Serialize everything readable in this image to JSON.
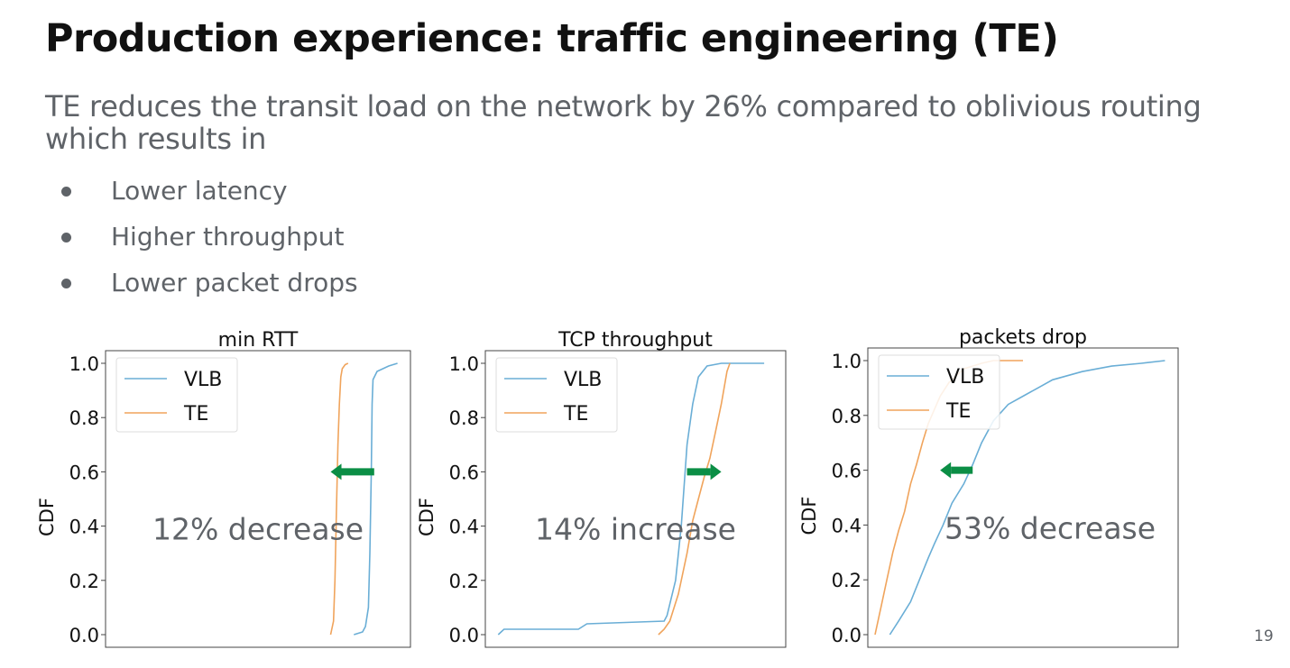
{
  "slide": {
    "title": "Production experience: traffic engineering (TE)",
    "subtitle": "TE reduces the transit load on the network by 26% compared to oblivious routing which results in",
    "bullets": [
      "Lower latency",
      "Higher throughput",
      "Lower packet drops"
    ],
    "page_number": "19"
  },
  "colors": {
    "vlb": "#6aaed6",
    "te": "#f0a45c",
    "arrow": "#0b8e45",
    "text": "#5f6368"
  },
  "chart_data": [
    {
      "type": "line",
      "title": "min RTT",
      "ylabel": "CDF",
      "xlabel": "",
      "ylim": [
        0,
        1
      ],
      "xlim": [
        0,
        100
      ],
      "yticks": [
        "0.0",
        "0.2",
        "0.4",
        "0.6",
        "0.8",
        "1.0"
      ],
      "legend": "top-left",
      "annotation": "12% decrease",
      "arrow": {
        "direction": "left",
        "x_from": 90,
        "x_to": 75,
        "y": 0.6
      },
      "series": [
        {
          "name": "VLB",
          "x": [
            83,
            86,
            87,
            88,
            88.5,
            89,
            89.3,
            89.6,
            91,
            95,
            98
          ],
          "y": [
            0.0,
            0.01,
            0.03,
            0.1,
            0.3,
            0.6,
            0.85,
            0.94,
            0.97,
            0.99,
            1.0
          ]
        },
        {
          "name": "TE",
          "x": [
            75,
            76,
            76.5,
            77,
            77.5,
            78,
            78.5,
            79,
            80,
            81
          ],
          "y": [
            0.0,
            0.05,
            0.2,
            0.45,
            0.7,
            0.85,
            0.95,
            0.98,
            0.995,
            1.0
          ]
        }
      ]
    },
    {
      "type": "line",
      "title": "TCP throughput",
      "ylabel": "CDF",
      "xlabel": "",
      "ylim": [
        0,
        1
      ],
      "xlim": [
        0,
        100
      ],
      "yticks": [
        "0.0",
        "0.2",
        "0.4",
        "0.6",
        "0.8",
        "1.0"
      ],
      "legend": "top-left",
      "annotation": "14% increase",
      "arrow": {
        "direction": "right",
        "x_from": 68,
        "x_to": 80,
        "y": 0.6
      },
      "series": [
        {
          "name": "VLB",
          "x": [
            2,
            4,
            30,
            33,
            60,
            61,
            64,
            66,
            67,
            68,
            70,
            72,
            75,
            80,
            95
          ],
          "y": [
            0.0,
            0.02,
            0.02,
            0.04,
            0.05,
            0.07,
            0.2,
            0.4,
            0.55,
            0.7,
            0.85,
            0.95,
            0.99,
            1.0,
            1.0
          ]
        },
        {
          "name": "TE",
          "x": [
            58,
            60,
            62,
            65,
            68,
            70,
            72,
            74,
            76,
            78,
            80,
            82,
            83
          ],
          "y": [
            0.0,
            0.02,
            0.05,
            0.15,
            0.3,
            0.42,
            0.5,
            0.58,
            0.65,
            0.75,
            0.85,
            0.97,
            1.0
          ]
        }
      ]
    },
    {
      "type": "line",
      "title": "packets drop",
      "ylabel": "CDF",
      "xlabel": "",
      "ylim": [
        0,
        1
      ],
      "xlim": [
        0,
        100
      ],
      "yticks": [
        "0.0",
        "0.2",
        "0.4",
        "0.6",
        "0.8",
        "1.0"
      ],
      "legend": "top-left",
      "annotation": "53% decrease",
      "arrow": {
        "direction": "left",
        "x_from": 33,
        "x_to": 22,
        "y": 0.6
      },
      "series": [
        {
          "name": "VLB",
          "x": [
            5,
            8,
            12,
            15,
            18,
            20,
            23,
            26,
            30,
            33,
            36,
            40,
            45,
            50,
            55,
            60,
            70,
            80,
            90,
            98
          ],
          "y": [
            0.0,
            0.05,
            0.12,
            0.2,
            0.28,
            0.33,
            0.4,
            0.48,
            0.55,
            0.62,
            0.7,
            0.78,
            0.84,
            0.87,
            0.9,
            0.93,
            0.96,
            0.98,
            0.99,
            1.0
          ]
        },
        {
          "name": "TE",
          "x": [
            0,
            2,
            4,
            6,
            8,
            10,
            12,
            14,
            16,
            18,
            20,
            22,
            25,
            28,
            30,
            33,
            36,
            40,
            45,
            50
          ],
          "y": [
            0.0,
            0.1,
            0.2,
            0.3,
            0.38,
            0.45,
            0.55,
            0.62,
            0.7,
            0.77,
            0.82,
            0.87,
            0.92,
            0.95,
            0.97,
            0.98,
            0.99,
            1.0,
            1.0,
            1.0
          ]
        }
      ]
    }
  ]
}
